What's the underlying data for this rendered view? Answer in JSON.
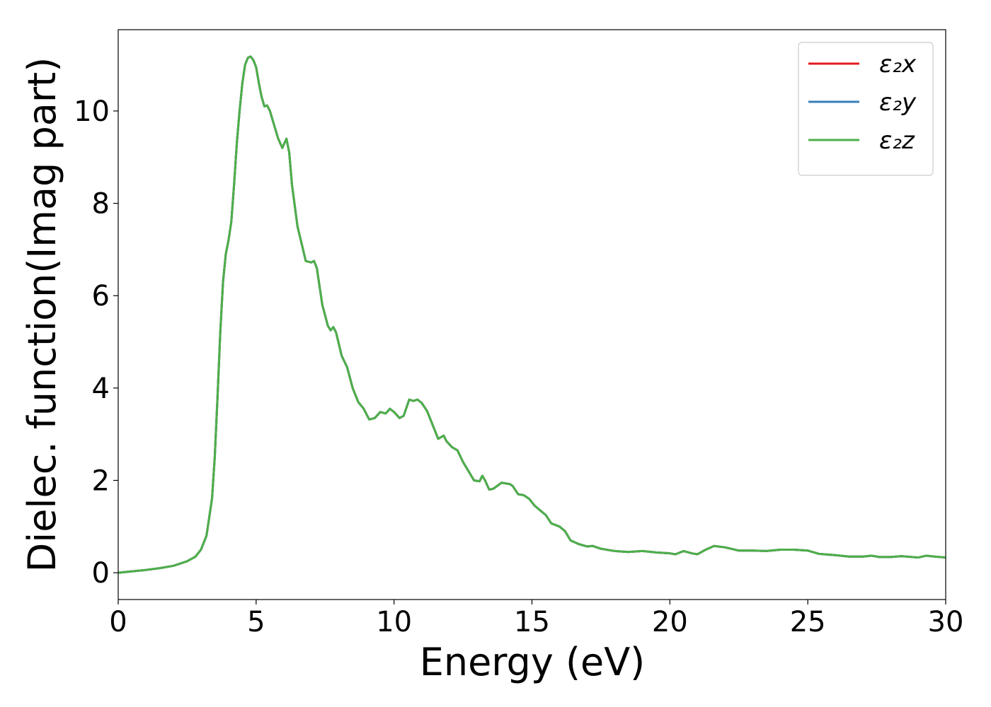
{
  "chart_data": {
    "type": "line",
    "xlabel": "Energy (eV)",
    "ylabel": "Dielec. function(Imag part)",
    "x": [
      0,
      0.5,
      1,
      1.5,
      2,
      2.5,
      2.8,
      3.0,
      3.2,
      3.4,
      3.5,
      3.6,
      3.7,
      3.8,
      3.9,
      4.0,
      4.1,
      4.2,
      4.3,
      4.4,
      4.5,
      4.6,
      4.7,
      4.8,
      4.9,
      5.0,
      5.1,
      5.2,
      5.3,
      5.4,
      5.5,
      5.6,
      5.8,
      5.95,
      6.1,
      6.2,
      6.3,
      6.5,
      6.7,
      6.8,
      7.0,
      7.1,
      7.2,
      7.4,
      7.6,
      7.7,
      7.8,
      7.9,
      8.1,
      8.3,
      8.5,
      8.7,
      8.9,
      9.1,
      9.3,
      9.5,
      9.7,
      9.85,
      10.0,
      10.2,
      10.35,
      10.55,
      10.7,
      10.85,
      11.0,
      11.2,
      11.4,
      11.6,
      11.8,
      11.9,
      12.1,
      12.3,
      12.5,
      12.7,
      12.9,
      13.1,
      13.2,
      13.3,
      13.45,
      13.6,
      13.9,
      14.2,
      14.3,
      14.5,
      14.7,
      14.9,
      15.1,
      15.3,
      15.5,
      15.7,
      16.0,
      16.2,
      16.4,
      16.7,
      17.0,
      17.2,
      17.5,
      18,
      18.5,
      19,
      19.5,
      20,
      20.2,
      20.5,
      20.8,
      21,
      21.3,
      21.6,
      22,
      22.5,
      23,
      23.5,
      24,
      24.5,
      25,
      25.4,
      26,
      26.5,
      27,
      27.3,
      27.6,
      28,
      28.4,
      29,
      29.3,
      29.6,
      30
    ],
    "series": [
      {
        "name": "ε₂x",
        "color": "#e41a1c",
        "values": [
          0,
          0.03,
          0.06,
          0.1,
          0.15,
          0.25,
          0.35,
          0.5,
          0.8,
          1.6,
          2.5,
          3.8,
          5.2,
          6.3,
          6.9,
          7.2,
          7.6,
          8.4,
          9.3,
          10.0,
          10.6,
          11.0,
          11.15,
          11.18,
          11.1,
          10.95,
          10.6,
          10.3,
          10.1,
          10.12,
          10.0,
          9.8,
          9.4,
          9.2,
          9.4,
          9.1,
          8.4,
          7.5,
          7.0,
          6.75,
          6.72,
          6.75,
          6.6,
          5.8,
          5.35,
          5.25,
          5.32,
          5.2,
          4.7,
          4.45,
          4.0,
          3.7,
          3.55,
          3.32,
          3.35,
          3.48,
          3.45,
          3.55,
          3.48,
          3.35,
          3.4,
          3.75,
          3.72,
          3.75,
          3.68,
          3.5,
          3.2,
          2.9,
          2.97,
          2.85,
          2.72,
          2.65,
          2.4,
          2.2,
          2.0,
          1.98,
          2.1,
          2.0,
          1.8,
          1.82,
          1.95,
          1.92,
          1.88,
          1.7,
          1.68,
          1.6,
          1.45,
          1.35,
          1.25,
          1.07,
          1.0,
          0.9,
          0.7,
          0.62,
          0.57,
          0.58,
          0.52,
          0.47,
          0.45,
          0.47,
          0.44,
          0.42,
          0.4,
          0.47,
          0.42,
          0.4,
          0.5,
          0.58,
          0.55,
          0.48,
          0.48,
          0.47,
          0.5,
          0.5,
          0.48,
          0.41,
          0.38,
          0.35,
          0.35,
          0.37,
          0.34,
          0.34,
          0.36,
          0.33,
          0.37,
          0.35,
          0.33
        ]
      },
      {
        "name": "ε₂y",
        "color": "#377eb8",
        "values": [
          0,
          0.03,
          0.06,
          0.1,
          0.15,
          0.25,
          0.35,
          0.5,
          0.8,
          1.6,
          2.5,
          3.8,
          5.2,
          6.3,
          6.9,
          7.2,
          7.6,
          8.4,
          9.3,
          10.0,
          10.6,
          11.0,
          11.15,
          11.18,
          11.1,
          10.95,
          10.6,
          10.3,
          10.1,
          10.12,
          10.0,
          9.8,
          9.4,
          9.2,
          9.4,
          9.1,
          8.4,
          7.5,
          7.0,
          6.75,
          6.72,
          6.75,
          6.6,
          5.8,
          5.35,
          5.25,
          5.32,
          5.2,
          4.7,
          4.45,
          4.0,
          3.7,
          3.55,
          3.32,
          3.35,
          3.48,
          3.45,
          3.55,
          3.48,
          3.35,
          3.4,
          3.75,
          3.72,
          3.75,
          3.68,
          3.5,
          3.2,
          2.9,
          2.97,
          2.85,
          2.72,
          2.65,
          2.4,
          2.2,
          2.0,
          1.98,
          2.1,
          2.0,
          1.8,
          1.82,
          1.95,
          1.92,
          1.88,
          1.7,
          1.68,
          1.6,
          1.45,
          1.35,
          1.25,
          1.07,
          1.0,
          0.9,
          0.7,
          0.62,
          0.57,
          0.58,
          0.52,
          0.47,
          0.45,
          0.47,
          0.44,
          0.42,
          0.4,
          0.47,
          0.42,
          0.4,
          0.5,
          0.58,
          0.55,
          0.48,
          0.48,
          0.47,
          0.5,
          0.5,
          0.48,
          0.41,
          0.38,
          0.35,
          0.35,
          0.37,
          0.34,
          0.34,
          0.36,
          0.33,
          0.37,
          0.35,
          0.33
        ]
      },
      {
        "name": "ε₂z",
        "color": "#4daf4a",
        "values": [
          0,
          0.03,
          0.06,
          0.1,
          0.15,
          0.25,
          0.35,
          0.5,
          0.8,
          1.6,
          2.5,
          3.8,
          5.2,
          6.3,
          6.9,
          7.2,
          7.6,
          8.4,
          9.3,
          10.0,
          10.6,
          11.0,
          11.15,
          11.18,
          11.1,
          10.95,
          10.6,
          10.3,
          10.1,
          10.12,
          10.0,
          9.8,
          9.4,
          9.2,
          9.4,
          9.1,
          8.4,
          7.5,
          7.0,
          6.75,
          6.72,
          6.75,
          6.6,
          5.8,
          5.35,
          5.25,
          5.32,
          5.2,
          4.7,
          4.45,
          4.0,
          3.7,
          3.55,
          3.32,
          3.35,
          3.48,
          3.45,
          3.55,
          3.48,
          3.35,
          3.4,
          3.75,
          3.72,
          3.75,
          3.68,
          3.5,
          3.2,
          2.9,
          2.97,
          2.85,
          2.72,
          2.65,
          2.4,
          2.2,
          2.0,
          1.98,
          2.1,
          2.0,
          1.8,
          1.82,
          1.95,
          1.92,
          1.88,
          1.7,
          1.68,
          1.6,
          1.45,
          1.35,
          1.25,
          1.07,
          1.0,
          0.9,
          0.7,
          0.62,
          0.57,
          0.58,
          0.52,
          0.47,
          0.45,
          0.47,
          0.44,
          0.42,
          0.4,
          0.47,
          0.42,
          0.4,
          0.5,
          0.58,
          0.55,
          0.48,
          0.48,
          0.47,
          0.5,
          0.5,
          0.48,
          0.41,
          0.38,
          0.35,
          0.35,
          0.37,
          0.34,
          0.34,
          0.36,
          0.33,
          0.37,
          0.35,
          0.33
        ]
      }
    ],
    "xlim": [
      0,
      30
    ],
    "xticks": [
      0,
      5,
      10,
      15,
      20,
      25,
      30
    ],
    "ylim": [
      -0.58,
      11.76
    ],
    "yticks": [
      0,
      2,
      4,
      6,
      8,
      10
    ],
    "grid": false,
    "legend": "upper right"
  }
}
